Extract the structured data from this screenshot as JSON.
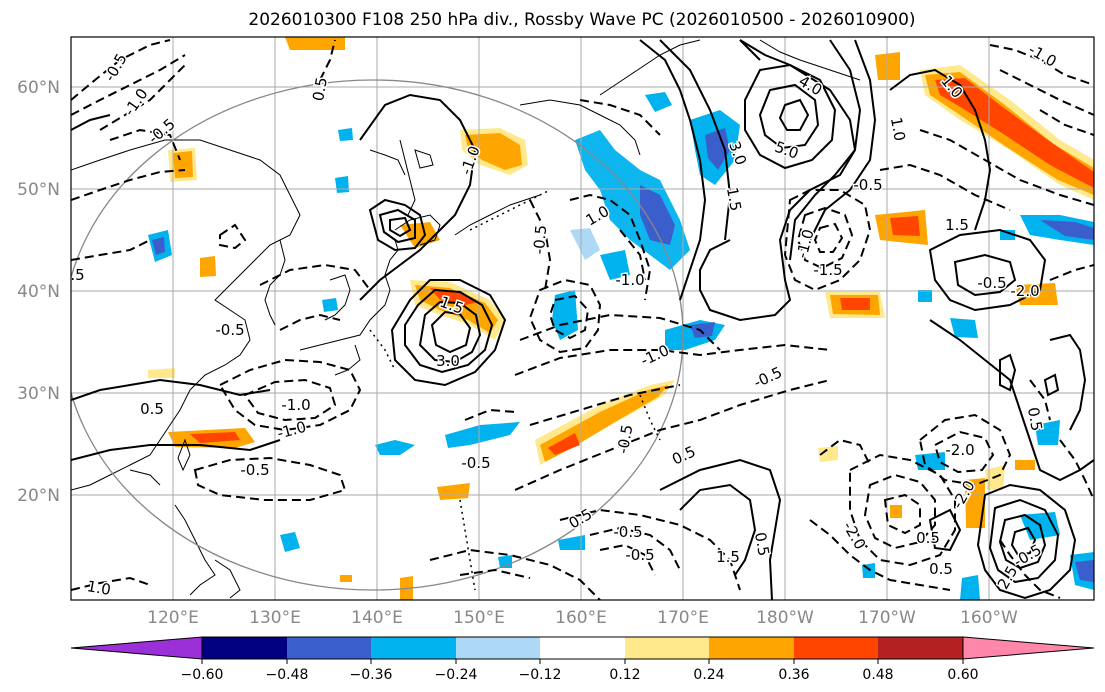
{
  "title": "2026010300 F108 250 hPa div., Rossby Wave PC (2026010500 - 2026010900)",
  "map": {
    "lon_ticks": [
      "120°E",
      "130°E",
      "140°E",
      "150°E",
      "160°E",
      "170°E",
      "180°W",
      "170°W",
      "160°W"
    ],
    "lat_ticks": [
      "60°N",
      "50°N",
      "40°N",
      "30°N",
      "20°N"
    ],
    "gridlines": true,
    "contour_labels": [
      "-0.5",
      "-1.0",
      "-0.5",
      "0.5",
      "-0.5",
      "1.5",
      "3.0",
      "-1.0",
      "0.5",
      "-0.5",
      "-1.0",
      "-0.5",
      "1.0",
      "-1.0",
      "4.0",
      "5.0",
      "3.0",
      "1.5",
      "-1.0",
      "-1.5",
      "-0.5",
      "1.0",
      "1.5",
      "-0.5",
      "-2.0",
      "-1.0",
      "1.0",
      "-0.5",
      "0.5",
      "-1.0",
      "-0.5",
      "-0.5",
      "0.5",
      "-2.0",
      "-2.0",
      "-0.5",
      "2.5",
      "0.5",
      "0.5",
      "-2.0",
      "0.5",
      "1.5",
      "0.5",
      "-0.5",
      "1.0",
      "-0.5",
      "-1.0",
      "-0.5"
    ],
    "colors": {
      "contour": "#000000",
      "grid": "#aaaaaa",
      "coastline": "#000000",
      "circle": "#888888"
    }
  },
  "colorbar": {
    "ticks": [
      "−0.60",
      "−0.48",
      "−0.36",
      "−0.24",
      "−0.12",
      "0.12",
      "0.24",
      "0.36",
      "0.48",
      "0.60"
    ],
    "colors": [
      "#9b30d9",
      "#000080",
      "#3a5fcd",
      "#00b2ee",
      "#add8f6",
      "#ffffff",
      "#ffe98c",
      "#ffa500",
      "#ff4500",
      "#b22222",
      "#ff88aa"
    ]
  }
}
